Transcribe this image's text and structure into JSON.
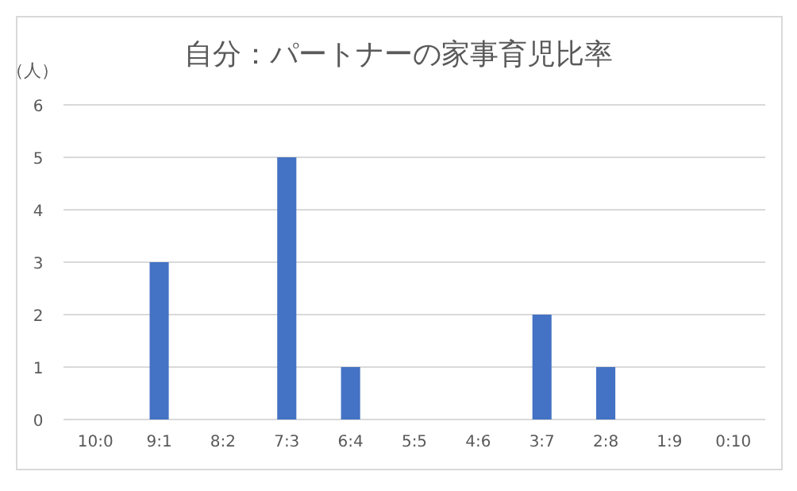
{
  "chart_data": {
    "type": "bar",
    "title": "自分：パートナーの家事育児比率",
    "ylabel": "（人）",
    "categories": [
      "10:0",
      "9:1",
      "8:2",
      "7:3",
      "6:4",
      "5:5",
      "4:6",
      "3:7",
      "2:8",
      "1:9",
      "0:10"
    ],
    "values": [
      0,
      3,
      0,
      5,
      1,
      0,
      0,
      2,
      1,
      0,
      0
    ],
    "color": "#4472c4",
    "ylim": [
      0,
      6
    ],
    "yticks": [
      0,
      1,
      2,
      3,
      4,
      5,
      6
    ],
    "grid": "y"
  }
}
